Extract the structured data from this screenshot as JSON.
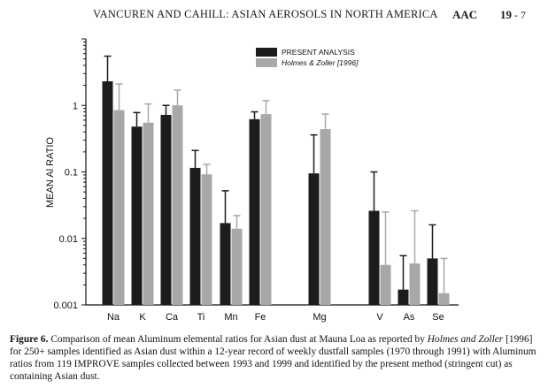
{
  "header": {
    "title": "VANCUREN AND CAHILL: ASIAN AEROSOLS IN NORTH AMERICA",
    "journal": "AAC",
    "page": "19",
    "page_sep": " - ",
    "page_num": "7"
  },
  "colors": {
    "present": "#1c1c1c",
    "holmes": "#a8a8a8",
    "axis": "#111111"
  },
  "chart_data": {
    "type": "bar",
    "ylabel": "MEAN Al RATIO",
    "xlabel": "",
    "yscale": "log",
    "ylim": [
      0.001,
      10
    ],
    "yticks": [
      {
        "value": 0.001,
        "label": "0.001"
      },
      {
        "value": 0.01,
        "label": "0.01"
      },
      {
        "value": 0.1,
        "label": "0.1"
      },
      {
        "value": 1,
        "label": "1"
      }
    ],
    "legend_position": "top-right",
    "categories": [
      "Na",
      "K",
      "Ca",
      "Ti",
      "Mn",
      "Fe",
      "Mg",
      "V",
      "As",
      "Se"
    ],
    "series": [
      {
        "name": "PRESENT ANALYSIS",
        "color": "#1c1c1c",
        "values": [
          2.3,
          0.48,
          0.72,
          0.115,
          0.017,
          0.62,
          0.095,
          0.026,
          0.0017,
          0.005
        ],
        "error_upper": [
          5.5,
          0.78,
          1.0,
          0.21,
          0.052,
          0.8,
          0.36,
          0.1,
          0.0055,
          0.016
        ]
      },
      {
        "name": "Holmes & Zoller [1996]",
        "color": "#a8a8a8",
        "values": [
          0.85,
          0.55,
          1.0,
          0.092,
          0.014,
          0.74,
          0.44,
          0.004,
          0.0042,
          0.0015
        ],
        "error_upper": [
          2.1,
          1.05,
          1.7,
          0.13,
          0.022,
          1.18,
          0.74,
          0.025,
          0.026,
          0.005
        ]
      }
    ]
  },
  "caption": {
    "label": "Figure 6.",
    "part1": "Comparison of mean Aluminum elemental ratios for Asian dust at Mauna Loa as reported by",
    "part2_italic": "Holmes and Zoller",
    "part2": "[1996] for 250+ samples identified as Asian dust within a 12-year record of weekly",
    "part3": "dustfall samples (1970 through 1991) with Aluminum ratios from 119 IMPROVE samples collected",
    "part4": "between 1993 and 1999 and identified by the present method (stringent cut) as containing Asian dust."
  }
}
